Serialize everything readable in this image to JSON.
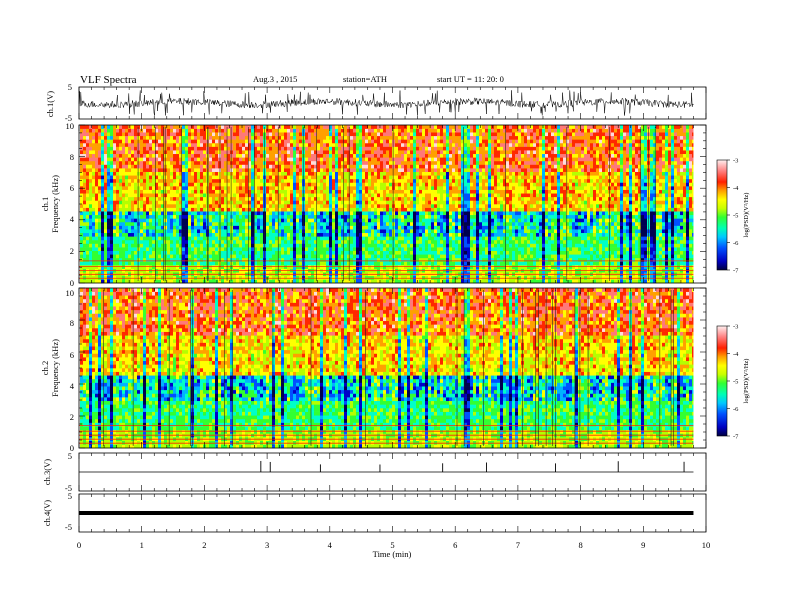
{
  "header": {
    "title": "VLF  Spectra",
    "date": "Aug.3  , 2015",
    "station": "station=ATH",
    "start": "start  UT  =   11: 20: 0"
  },
  "colors": {
    "colormap": [
      "#000050",
      "#0000c8",
      "#0050ff",
      "#00b4ff",
      "#00ffc8",
      "#32ff32",
      "#b4ff00",
      "#ffff00",
      "#ffa000",
      "#ff2800",
      "#ff7878",
      "#ffdcdc"
    ]
  },
  "chart_data": [
    {
      "type": "line",
      "name": "ch1-waveform",
      "ylabel": "ch.1(V)",
      "ylim": [
        -5,
        5
      ],
      "yticks": [
        "5",
        "-5"
      ],
      "x_range_min": [
        0,
        9.8
      ],
      "description_level": "noisy broadband signal approx. +/-2 V about 0"
    },
    {
      "type": "heatmap",
      "name": "ch1-spectrogram",
      "ylabel": [
        "ch.1",
        "Frequency (kHz)"
      ],
      "ylim": [
        0,
        10
      ],
      "yticks": [
        "0",
        "2",
        "4",
        "6",
        "8",
        "10"
      ],
      "colorbar": {
        "label": "log(PSD)(V²/Hz)",
        "range": [
          -7,
          -3
        ],
        "ticks": [
          "-3",
          "-4",
          "-5",
          "-6",
          "-7"
        ]
      }
    },
    {
      "type": "heatmap",
      "name": "ch2-spectrogram",
      "ylabel": [
        "ch.2",
        "Frequency (kHz)"
      ],
      "ylim": [
        0,
        10
      ],
      "yticks": [
        "0",
        "2",
        "4",
        "6",
        "8",
        "10"
      ],
      "colorbar": {
        "label": "log(PSD)(V²/Hz)",
        "range": [
          -7,
          -3
        ],
        "ticks": [
          "-3",
          "-4",
          "-5",
          "-6",
          "-7"
        ]
      }
    },
    {
      "type": "line",
      "name": "ch3-waveform",
      "ylabel": "ch.3(V)",
      "ylim": [
        -5,
        5
      ],
      "yticks": [
        "5",
        "-5"
      ],
      "spikes_min": [
        2.9,
        3.05,
        3.85,
        4.8,
        5.8,
        6.5,
        7.6,
        8.6,
        9.65
      ]
    },
    {
      "type": "line",
      "name": "ch4-waveform",
      "ylabel": "ch.4(V)",
      "ylim": [
        -5,
        5
      ],
      "yticks": [
        "5",
        "-5"
      ],
      "constant_value": 0
    }
  ],
  "xaxis": {
    "label": "Time  (min)",
    "range": [
      0,
      10
    ],
    "ticks": [
      "0",
      "1",
      "2",
      "3",
      "4",
      "5",
      "6",
      "7",
      "8",
      "9",
      "10"
    ]
  }
}
